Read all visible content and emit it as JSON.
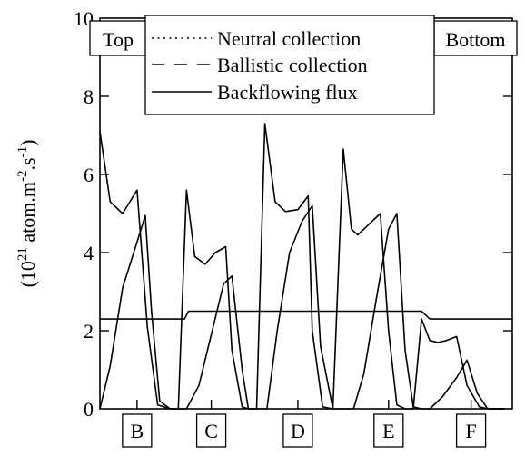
{
  "chart_data": {
    "type": "line",
    "ylabel_main": "(10",
    "ylabel_sup": "21",
    "ylabel_rest": " atom.m",
    "ylabel_sup2": "-2",
    "ylabel_rest2": ".s",
    "ylabel_sup3": "-1",
    "ylabel_end": ")",
    "ylim": [
      0,
      10
    ],
    "yticks": [
      "0",
      "2",
      "4",
      "6",
      "8",
      "10"
    ],
    "xlim": [
      0,
      100
    ],
    "corner_labels": {
      "top": "Top",
      "bottom": "Bottom"
    },
    "legend": {
      "placement": "top-center",
      "entries": [
        {
          "label": "Neutral collection",
          "style": "dotted"
        },
        {
          "label": "Ballistic collection",
          "style": "dashed"
        },
        {
          "label": "Backflowing flux",
          "style": "solid"
        }
      ]
    },
    "regions": [
      {
        "label": "B",
        "center": 9
      },
      {
        "label": "C",
        "center": 27
      },
      {
        "label": "D",
        "center": 48
      },
      {
        "label": "E",
        "center": 70
      },
      {
        "label": "F",
        "center": 90
      }
    ],
    "series": [
      {
        "x": [
          0,
          2.5,
          5.5,
          9,
          11.5,
          14,
          17,
          19,
          21,
          23,
          25.5,
          28,
          30.5,
          32,
          34.5,
          36,
          38,
          40,
          42.5,
          45,
          48,
          50.5,
          51.5,
          54,
          56.5,
          59,
          61,
          62.5,
          65,
          68,
          70,
          72,
          74,
          76,
          78,
          80,
          82,
          84,
          86.5,
          89,
          92,
          94,
          96,
          98
        ],
        "y": [
          7.1,
          5.3,
          5.0,
          5.6,
          2.1,
          0.1,
          0.0,
          0.0,
          5.6,
          3.9,
          3.7,
          4.0,
          4.15,
          1.5,
          0.05,
          0.0,
          0.0,
          7.3,
          5.3,
          5.05,
          5.1,
          5.45,
          2.0,
          0.05,
          0.0,
          6.65,
          4.6,
          4.45,
          4.7,
          5.0,
          2.0,
          0.1,
          0.0,
          0.0,
          2.3,
          1.75,
          1.7,
          1.75,
          1.85,
          0.6,
          0.05,
          0.0,
          0.0,
          0.0
        ]
      },
      {
        "x": [
          0,
          2.5,
          5.5,
          8.5,
          11,
          12.5,
          14.5,
          17,
          19,
          21,
          24,
          27,
          30,
          32,
          34.5,
          36,
          38,
          40.5,
          43,
          46,
          49,
          51.5,
          53.5,
          56.5,
          59,
          61.5,
          64,
          67,
          70,
          72,
          74,
          76,
          78,
          80,
          83,
          86.5,
          89,
          91.5,
          94,
          96,
          98
        ],
        "y": [
          0.0,
          1.1,
          3.1,
          4.1,
          4.95,
          2.5,
          0.2,
          0.0,
          0.0,
          0.0,
          0.6,
          1.9,
          3.2,
          3.4,
          1.0,
          0.0,
          0.0,
          0.0,
          2.0,
          4.0,
          4.8,
          5.2,
          1.6,
          0.0,
          0.0,
          0.0,
          0.9,
          2.8,
          4.6,
          5.0,
          1.5,
          0.05,
          0.0,
          0.0,
          0.3,
          0.8,
          1.25,
          0.4,
          0.0,
          0.0,
          0.0
        ]
      },
      {
        "x": [
          0,
          20.5,
          21.5,
          78,
          80,
          100
        ],
        "y": [
          2.3,
          2.3,
          2.5,
          2.5,
          2.3,
          2.3
        ]
      }
    ]
  }
}
